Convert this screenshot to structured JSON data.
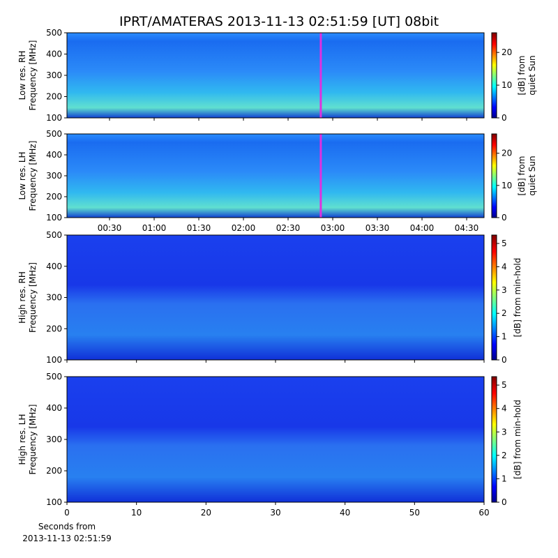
{
  "chart_data": [
    {
      "type": "heatmap",
      "title": "IPRT/AMATERAS 2013-11-13 02:51:59 [UT]   08bit",
      "ylabel": [
        "Low res. RH",
        "Frequency [MHz]"
      ],
      "ylim": [
        100,
        500
      ],
      "yticks": [
        100,
        200,
        300,
        400,
        500
      ],
      "xlim": [
        1.4,
        281.7
      ],
      "xticks": [
        30,
        60,
        90,
        120,
        150,
        180,
        210,
        240,
        270
      ],
      "xtick_labels": false,
      "marker": 171.98,
      "marker_color": "#e030e0",
      "colormap": "low",
      "colorbar": {
        "label": [
          "[dB] from",
          "quiet Sun"
        ],
        "lim": [
          0,
          26
        ],
        "ticks": [
          0,
          10,
          20
        ]
      }
    },
    {
      "type": "heatmap",
      "ylabel": [
        "Low res. LH",
        "Frequency [MHz]"
      ],
      "ylim": [
        100,
        500
      ],
      "yticks": [
        100,
        200,
        300,
        400,
        500
      ],
      "xlim": [
        1.4,
        281.7
      ],
      "xticks": [
        {
          "value": 30,
          "label": "00:30"
        },
        {
          "value": 60,
          "label": "01:00"
        },
        {
          "value": 90,
          "label": "01:30"
        },
        {
          "value": 120,
          "label": "02:00"
        },
        {
          "value": 150,
          "label": "02:30"
        },
        {
          "value": 180,
          "label": "03:00"
        },
        {
          "value": 210,
          "label": "03:30"
        },
        {
          "value": 240,
          "label": "04:00"
        },
        {
          "value": 270,
          "label": "04:30"
        }
      ],
      "xtick_labels": true,
      "marker": 171.98,
      "marker_color": "#e030e0",
      "colormap": "low",
      "colorbar": {
        "label": [
          "[dB] from",
          "quiet Sun"
        ],
        "lim": [
          0,
          26
        ],
        "ticks": [
          0,
          10,
          20
        ]
      }
    },
    {
      "type": "heatmap",
      "ylabel": [
        "High res. RH",
        "Frequency [MHz]"
      ],
      "ylim": [
        100,
        500
      ],
      "yticks": [
        100,
        200,
        300,
        400,
        500
      ],
      "xlim": [
        0,
        60
      ],
      "xticks": [
        0,
        10,
        20,
        30,
        40,
        50,
        60
      ],
      "xtick_labels": false,
      "colormap": "high",
      "colorbar": {
        "label": [
          "[dB] from min-hold"
        ],
        "lim": [
          0,
          5.36
        ],
        "ticks": [
          0,
          1,
          2,
          3,
          4,
          5
        ]
      }
    },
    {
      "type": "heatmap",
      "ylabel": [
        "High res. LH",
        "Frequency [MHz]"
      ],
      "xlabel": [
        "Seconds from",
        "2013-11-13 02:51:59"
      ],
      "ylim": [
        100,
        500
      ],
      "yticks": [
        100,
        200,
        300,
        400,
        500
      ],
      "xlim": [
        0,
        60
      ],
      "xticks": [
        0,
        10,
        20,
        30,
        40,
        50,
        60
      ],
      "xtick_labels": true,
      "colormap": "high",
      "colorbar": {
        "label": [
          "[dB] from min-hold"
        ],
        "lim": [
          0,
          5.36
        ],
        "ticks": [
          0,
          1,
          2,
          3,
          4,
          5
        ]
      }
    }
  ]
}
